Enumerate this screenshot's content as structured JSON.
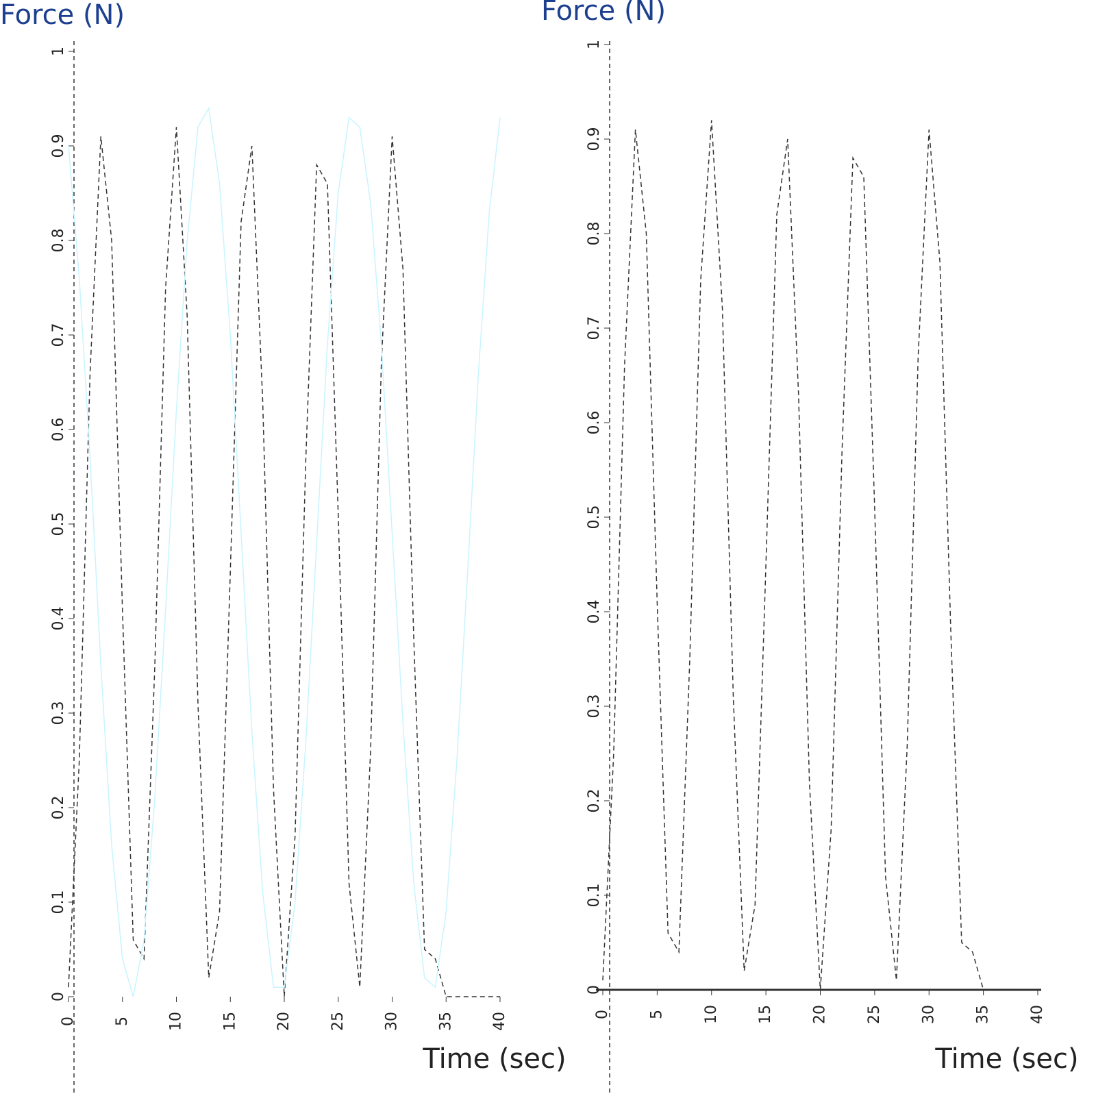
{
  "chart_data": [
    {
      "type": "line",
      "title": "Force (N)",
      "x_label": "Time (sec)",
      "xlim": [
        0,
        40
      ],
      "ylim": [
        0,
        1
      ],
      "xticks": [
        0,
        5,
        10,
        15,
        20,
        25,
        30,
        35,
        40
      ],
      "yticks": [
        0,
        0.1,
        0.2,
        0.3,
        0.4,
        0.5,
        0.6,
        0.7,
        0.8,
        0.9,
        1
      ],
      "x": [
        0,
        1,
        2,
        3,
        4,
        5,
        6,
        7,
        8,
        9,
        10,
        11,
        12,
        13,
        14,
        15,
        16,
        17,
        18,
        19,
        20,
        21,
        22,
        23,
        24,
        25,
        26,
        27,
        28,
        29,
        30,
        31,
        32,
        33,
        34,
        35,
        36,
        37,
        38,
        39,
        40
      ],
      "series": [
        {
          "color": "#333333",
          "style": "dashed",
          "values": [
            0.01,
            0.25,
            0.66,
            0.91,
            0.8,
            0.41,
            0.06,
            0.04,
            0.35,
            0.75,
            0.92,
            0.72,
            0.31,
            0.02,
            0.09,
            0.45,
            0.82,
            0.9,
            0.63,
            0.22,
            0,
            0.17,
            0.57,
            0.88,
            0.86,
            0.51,
            0.12,
            0.01,
            0.26,
            0.67,
            0.91,
            0.77,
            0.38,
            0.05,
            0.04,
            0,
            0,
            0,
            0,
            0,
            0
          ]
        },
        {
          "color": "#c8f4ff",
          "style": "solid",
          "values": [
            0.9,
            0.76,
            0.57,
            0.35,
            0.16,
            0.04,
            0,
            0.06,
            0.21,
            0.41,
            0.62,
            0.8,
            0.92,
            0.94,
            0.86,
            0.7,
            0.49,
            0.28,
            0.11,
            0.01,
            0.01,
            0.1,
            0.27,
            0.48,
            0.69,
            0.85,
            0.93,
            0.92,
            0.84,
            0.69,
            0.49,
            0.29,
            0.12,
            0.02,
            0.01,
            0.09,
            0.25,
            0.45,
            0.66,
            0.83,
            0.93
          ]
        }
      ]
    },
    {
      "type": "line",
      "title": "Force (N)",
      "x_label": "Time (sec)",
      "xlim": [
        0,
        40
      ],
      "ylim": [
        0,
        1
      ],
      "xticks": [
        0,
        5,
        10,
        15,
        20,
        25,
        30,
        35,
        40
      ],
      "yticks": [
        0,
        0.1,
        0.2,
        0.3,
        0.4,
        0.5,
        0.6,
        0.7,
        0.8,
        0.9,
        1
      ],
      "x_axis_line": true,
      "x": [
        0,
        1,
        2,
        3,
        4,
        5,
        6,
        7,
        8,
        9,
        10,
        11,
        12,
        13,
        14,
        15,
        16,
        17,
        18,
        19,
        20,
        21,
        22,
        23,
        24,
        25,
        26,
        27,
        28,
        29,
        30,
        31,
        32,
        33,
        34,
        35,
        36,
        37,
        38,
        39,
        40
      ],
      "series": [
        {
          "color": "#333333",
          "style": "dashed",
          "values": [
            0.01,
            0.25,
            0.66,
            0.91,
            0.8,
            0.41,
            0.06,
            0.04,
            0.35,
            0.75,
            0.92,
            0.72,
            0.31,
            0.02,
            0.09,
            0.45,
            0.82,
            0.9,
            0.63,
            0.22,
            0,
            0.17,
            0.57,
            0.88,
            0.86,
            0.51,
            0.12,
            0.01,
            0.26,
            0.67,
            0.91,
            0.77,
            0.38,
            0.05,
            0.04,
            0,
            0,
            0,
            0,
            0,
            0
          ]
        }
      ]
    }
  ]
}
